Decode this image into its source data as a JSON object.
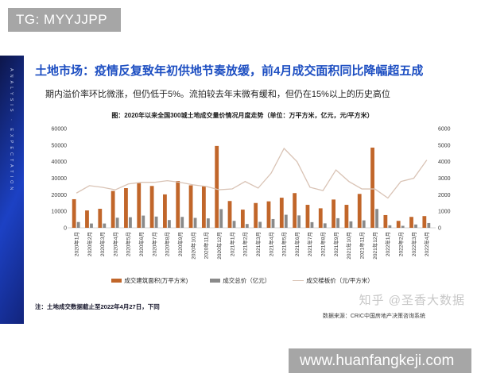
{
  "overlay": {
    "tg_label": "TG: MYYJJPP",
    "site_label": "www.huanfangkeji.com"
  },
  "sidebar": {
    "vertical_text": "ANALYSIS · EXPECTATION"
  },
  "slide": {
    "title": "土地市场：疫情反复致年初供地节奏放缓，前4月成交面积同比降幅超五成",
    "subtitle": "期内溢价率环比微涨，但仍低于5%。流拍较去年末微有缓和，但仍在15%以上的历史高位",
    "note": "注：土地成交数据截止至2022年4月27日，下同",
    "source": "数据来源：CRIC中国房地产决策咨询系统",
    "watermark": "知乎 @圣香大数据"
  },
  "chart_data": {
    "type": "bar",
    "title": "图：2020年以来全国300城土地成交量价情况月度走势（单位：万平方米，亿元，元/平方米）",
    "categories": [
      "2020年1月",
      "2020年2月",
      "2020年3月",
      "2020年4月",
      "2020年5月",
      "2020年6月",
      "2020年7月",
      "2020年8月",
      "2020年9月",
      "2020年10月",
      "2020年11月",
      "2020年12月",
      "2021年1月",
      "2021年2月",
      "2021年3月",
      "2021年4月",
      "2021年5月",
      "2021年6月",
      "2021年7月",
      "2021年8月",
      "2021年9月",
      "2021年10月",
      "2021年11月",
      "2021年12月",
      "2022年1月",
      "2022年2月",
      "2022年3月",
      "2022年4月"
    ],
    "series": [
      {
        "name": "成交建筑面积(万平方米)",
        "type": "bar",
        "axis": "left",
        "color": "#c1662a",
        "values": [
          17300,
          10500,
          11500,
          22300,
          24000,
          27000,
          25300,
          20200,
          28300,
          25700,
          25000,
          49500,
          16200,
          11000,
          15000,
          16000,
          18200,
          21000,
          13900,
          11800,
          17100,
          13900,
          20500,
          48500,
          7700,
          4200,
          6600,
          7100
        ]
      },
      {
        "name": "成交总价（亿元）",
        "type": "bar",
        "axis": "left",
        "color": "#8a8a8a",
        "values": [
          3500,
          2600,
          2600,
          6100,
          6400,
          7400,
          6800,
          4700,
          6600,
          6000,
          5700,
          11300,
          4200,
          2300,
          3600,
          5300,
          7900,
          7500,
          3400,
          2700,
          5800,
          3900,
          4500,
          11400,
          1500,
          1200,
          2000,
          2900
        ]
      },
      {
        "name": "成交楼板价（元/平方米）",
        "type": "line",
        "axis": "right",
        "color": "#d9c3b5",
        "values": [
          2100,
          2550,
          2450,
          2300,
          2650,
          2750,
          2750,
          2850,
          2750,
          2600,
          2500,
          2300,
          2350,
          2800,
          2400,
          3300,
          4800,
          4000,
          2450,
          2250,
          3500,
          2800,
          2350,
          2350,
          1800,
          2800,
          3000,
          4100
        ]
      }
    ],
    "left_axis": {
      "min": 0,
      "max": 60000,
      "step": 10000
    },
    "right_axis": {
      "min": 0,
      "max": 6000,
      "step": 1000
    },
    "grid": "off",
    "legend_position": "bottom"
  }
}
